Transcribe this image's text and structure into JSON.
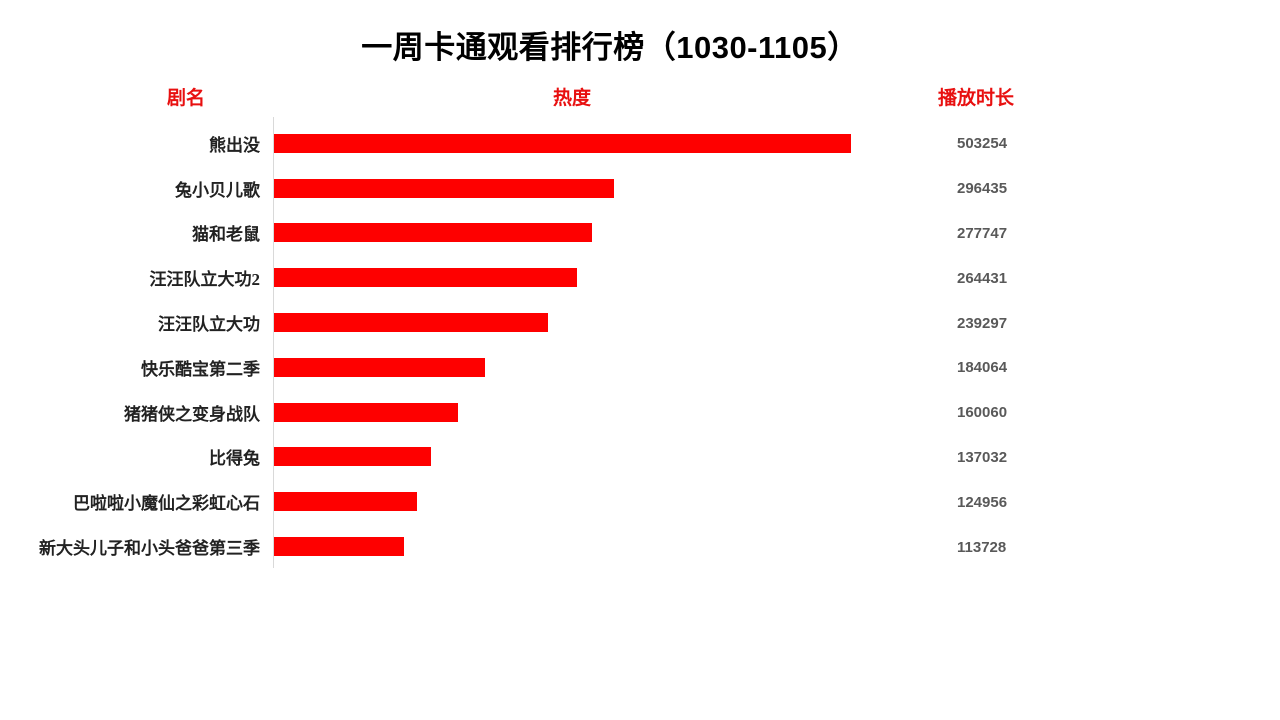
{
  "title": "一周卡通观看排行榜（1030-1105）",
  "columns": {
    "name": "剧名",
    "heat": "热度",
    "duration": "播放时长"
  },
  "colors": {
    "bar": "#fe0000",
    "header_text": "#e81010",
    "title_text": "#000000",
    "category_text": "#222222",
    "value_text": "#595959",
    "axis_line": "#d9d9d9",
    "background": "#ffffff"
  },
  "chart_data": {
    "type": "bar",
    "orientation": "horizontal",
    "title": "一周卡通观看排行榜（1030-1105）",
    "xlabel": "热度",
    "ylabel": "剧名",
    "value_column_label": "播放时长",
    "categories": [
      "熊出没",
      "兔小贝儿歌",
      "猫和老鼠",
      "汪汪队立大功2",
      "汪汪队立大功",
      "快乐酷宝第二季",
      "猪猪侠之变身战队",
      "比得兔",
      "巴啦啦小魔仙之彩虹心石",
      "新大头儿子和小头爸爸第三季"
    ],
    "values": [
      503254,
      296435,
      277747,
      264431,
      239297,
      184064,
      160060,
      137032,
      124956,
      113728
    ],
    "xlim": [
      0,
      503254
    ],
    "grid": false,
    "legend": false,
    "bars_sorted_descending": true
  }
}
